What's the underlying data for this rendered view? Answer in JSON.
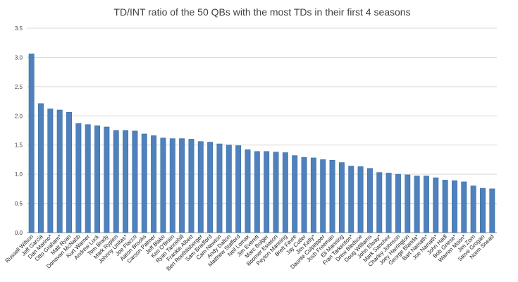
{
  "chart_data": {
    "type": "bar",
    "title": "TD/INT ratio of the 50 QBs with the most TDs in their first 4 seasons",
    "xlabel": "",
    "ylabel": "",
    "ylim": [
      0,
      3.5
    ],
    "yticks": [
      "0.0",
      "0.5",
      "1.0",
      "1.5",
      "2.0",
      "2.5",
      "3.0",
      "3.5"
    ],
    "grid": true,
    "bar_color": "#4f81bd",
    "categories": [
      "Russell Wilson",
      "Jeff Garcia",
      "Dan Marino*",
      "Otto Graham*",
      "Matt Ryan",
      "Donovan McNabb",
      "Kurt Warner",
      "Andrew Luck",
      "Tom Brady",
      "Mark Rypien",
      "Johnny Unitas*",
      "Joe Flacco",
      "Aaron Brooks",
      "Carson Palmer",
      "Jeff Blake",
      "Ken O'Brien",
      "Ryan Tannehill",
      "Frankie Albert",
      "Ben Roethlisberger",
      "Sam Bradford",
      "Cam Newton",
      "Andy Dalton",
      "Matthew Stafford",
      "Neil Lomax",
      "Jim Everett",
      "Marc Bulger",
      "Boomer Esiason",
      "Peyton Manning",
      "Brett Favre",
      "Jay Cutler",
      "Jim Kelly*",
      "Daunte Culpepper",
      "Josh Freeman",
      "Eli Manning",
      "Fran Tarkenton*",
      "Drew Bledsoe",
      "Doug Williams",
      "John Elway*",
      "Mark Sanchez",
      "Charley Johnson",
      "Joey Harrington",
      "George Blanda*",
      "Bart Namath*",
      "Joe Namath*",
      "John Hadl",
      "Bob Griese*",
      "Warren Moon*",
      "Jim Zorn",
      "Steve Grogan",
      "Norm Snead"
    ],
    "values": [
      3.06,
      2.21,
      2.12,
      2.1,
      2.06,
      1.87,
      1.85,
      1.83,
      1.81,
      1.75,
      1.75,
      1.74,
      1.69,
      1.66,
      1.62,
      1.61,
      1.61,
      1.6,
      1.56,
      1.55,
      1.52,
      1.5,
      1.49,
      1.42,
      1.39,
      1.39,
      1.38,
      1.37,
      1.32,
      1.29,
      1.28,
      1.25,
      1.24,
      1.2,
      1.14,
      1.13,
      1.1,
      1.03,
      1.02,
      1.0,
      0.99,
      0.97,
      0.97,
      0.94,
      0.9,
      0.89,
      0.87,
      0.8,
      0.76,
      0.75
    ]
  }
}
